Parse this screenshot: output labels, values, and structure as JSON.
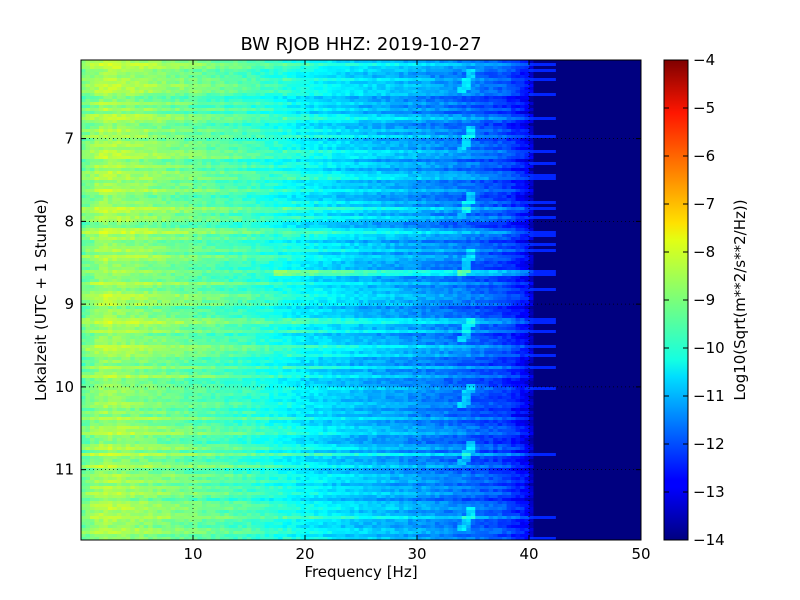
{
  "chart_data": {
    "type": "heatmap",
    "title": "BW RJOB HHZ: 2019-10-27",
    "xlabel": "Frequency [Hz]",
    "ylabel": "Lokalzeit (UTC + 1 Stunde)",
    "xlim": [
      0,
      50
    ],
    "ylim": [
      11.85,
      6.05
    ],
    "x_ticks": [
      10,
      20,
      30,
      40,
      50
    ],
    "y_ticks": [
      7,
      8,
      9,
      10,
      11
    ],
    "grid": true,
    "colormap": "jet",
    "colorbar": {
      "label": "Log10(Sqrt(m**2/s**2/Hz))",
      "range": [
        -14,
        -4
      ],
      "ticks": [
        -4,
        -5,
        -6,
        -7,
        -8,
        -9,
        -10,
        -11,
        -12,
        -13,
        -14
      ]
    },
    "profile": {
      "frequency_hz": [
        0,
        2,
        5,
        10,
        15,
        20,
        25,
        30,
        34,
        38,
        40,
        40.5,
        50
      ],
      "level": [
        -9.2,
        -8.6,
        -8.8,
        -9.2,
        -9.6,
        -10.3,
        -10.8,
        -11.2,
        -11.6,
        -12.1,
        -12.8,
        -14,
        -14
      ]
    },
    "features": {
      "line_frequency_hz": 34.5,
      "line_times": [
        6.3,
        7.0,
        7.8,
        8.5,
        9.3,
        10.1,
        10.8,
        11.6
      ],
      "broadband_event_time": 8.62
    }
  }
}
